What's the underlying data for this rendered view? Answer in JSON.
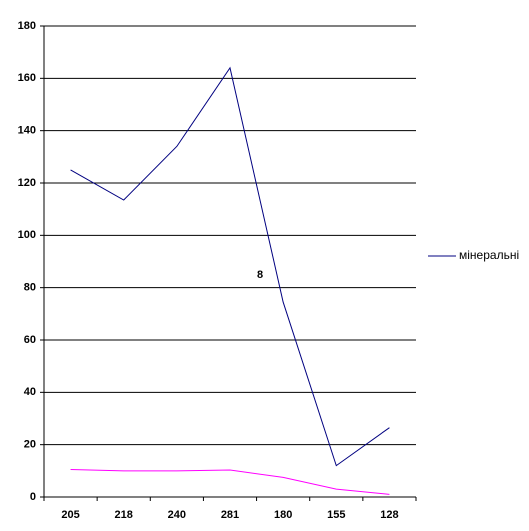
{
  "chart_data": {
    "type": "line",
    "categories": [
      "205",
      "218",
      "240",
      "281",
      "180",
      "155",
      "128"
    ],
    "series": [
      {
        "name": "мінеральні",
        "color": "#000080",
        "values": [
          125,
          113.5,
          134,
          164,
          74.5,
          12,
          26.5
        ]
      },
      {
        "color": "#ff00ff",
        "values": [
          10.5,
          10,
          10,
          10.3,
          7.5,
          3,
          1
        ]
      }
    ],
    "ylim": [
      0,
      180
    ],
    "yticks": [
      0,
      20,
      40,
      60,
      80,
      100,
      120,
      140,
      160,
      180
    ],
    "grid": true,
    "legend": "right",
    "annotations": [
      "8"
    ]
  }
}
